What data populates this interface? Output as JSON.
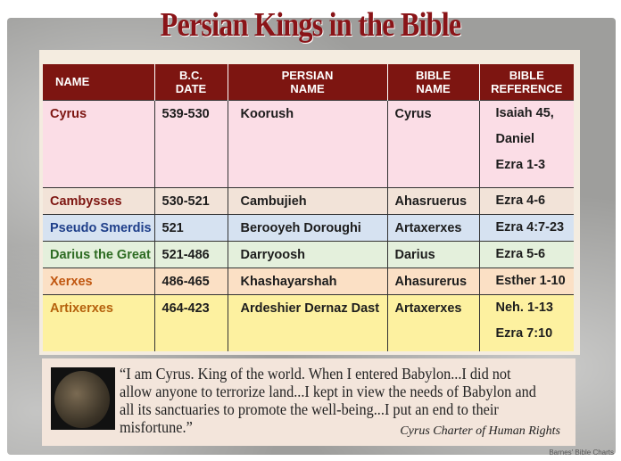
{
  "title": "Persian Kings in the Bible",
  "table": {
    "headers": [
      "NAME",
      "B.C. DATE",
      "PERSIAN NAME",
      "BIBLE NAME",
      "BIBLE REFERENCE"
    ],
    "rows": [
      {
        "name": "Cyrus",
        "date": "539-530",
        "persian": "Koorush",
        "bible": "Cyrus",
        "ref": [
          "Isaiah 45,",
          "Daniel",
          "Ezra 1-3"
        ],
        "bg": "#fbdde6",
        "color": "#7d1511"
      },
      {
        "name": "Cambysses",
        "date": "530-521",
        "persian": "Cambujieh",
        "bible": "Ahasruerus",
        "ref": [
          "Ezra 4-6"
        ],
        "bg": "#f2e3d8",
        "color": "#7d1511"
      },
      {
        "name": "Pseudo Smerdis",
        "date": "521",
        "persian": "Berooyeh Doroughi",
        "bible": "Artaxerxes",
        "ref": [
          "Ezra 4:7-23"
        ],
        "bg": "#d6e2f1",
        "color": "#1f3f8a"
      },
      {
        "name": "Darius the Great",
        "date": "521-486",
        "persian": "Darryoosh",
        "bible": "Darius",
        "ref": [
          "Ezra 5-6"
        ],
        "bg": "#e4f0dc",
        "color": "#2d6b22"
      },
      {
        "name": "Xerxes",
        "date": "486-465",
        "persian": "Khashayarshah",
        "bible": "Ahasurerus",
        "ref": [
          "Esther 1-10"
        ],
        "bg": "#fbe0c5",
        "color": "#c0560f"
      },
      {
        "name": "Artixerxes",
        "date": "464-423",
        "persian": "Ardeshier Dernaz Dast",
        "bible": "Artaxerxes",
        "ref": [
          "Neh. 1-13",
          "Ezra 7:10"
        ],
        "bg": "#fdf1a0",
        "color": "#b5610c"
      }
    ]
  },
  "quote": {
    "text": "“I am Cyrus. King of the world.  When I entered Babylon...I did not allow anyone to terrorize land...I kept in view the needs of Babylon and all its sanctuaries to promote the well-being...I put an end to their misfortune.”",
    "source": "Cyrus Charter of Human Rights",
    "image": "cyrus-coin"
  },
  "watermark": "Barnes' Bible Charts"
}
